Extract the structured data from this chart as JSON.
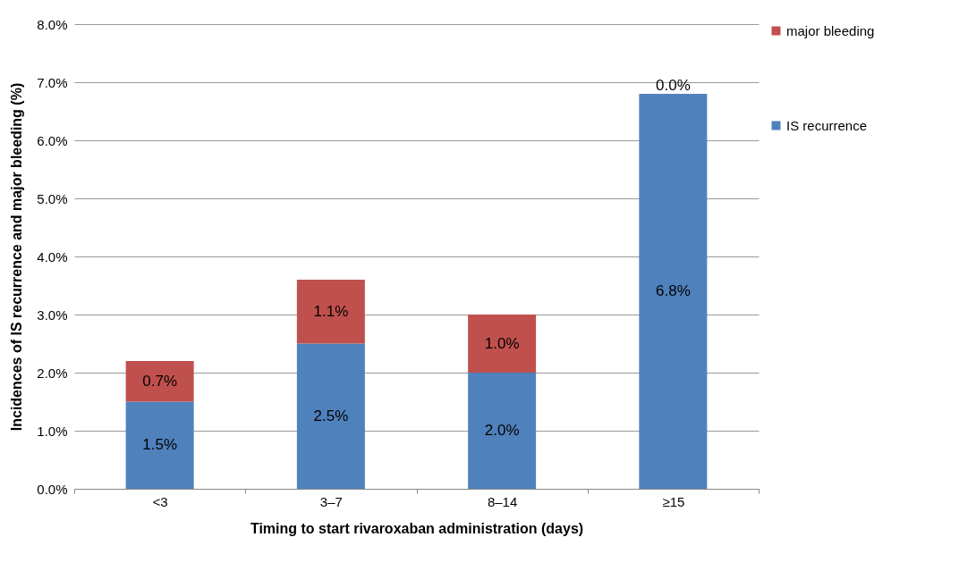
{
  "chart_data": {
    "type": "bar",
    "stacked": true,
    "xlabel": "Timing to start rivaroxaban administration (days)",
    "ylabel": "Incidences of IS recurrence and major bleeding (%)",
    "categories": [
      "<3",
      "3–7",
      "8–14",
      "≥15"
    ],
    "series": [
      {
        "name": "IS recurrence",
        "color": "#4f81bd",
        "values": [
          1.5,
          2.5,
          2.0,
          6.8
        ],
        "value_labels": [
          "1.5%",
          "2.5%",
          "2.0%",
          "6.8%"
        ]
      },
      {
        "name": "major bleeding",
        "color": "#c0504d",
        "values": [
          0.7,
          1.1,
          1.0,
          0.0
        ],
        "value_labels": [
          "0.7%",
          "1.1%",
          "1.0%",
          "0.0%"
        ]
      }
    ],
    "ylim": [
      0,
      8
    ],
    "yticks": [
      {
        "value": 0,
        "label": "0.0%"
      },
      {
        "value": 1,
        "label": "1.0%"
      },
      {
        "value": 2,
        "label": "2.0%"
      },
      {
        "value": 3,
        "label": "3.0%"
      },
      {
        "value": 4,
        "label": "4.0%"
      },
      {
        "value": 5,
        "label": "5.0%"
      },
      {
        "value": 6,
        "label": "6.0%"
      },
      {
        "value": 7,
        "label": "7.0%"
      },
      {
        "value": 8,
        "label": "8.0%"
      }
    ],
    "grid": "y",
    "legend": "right"
  }
}
